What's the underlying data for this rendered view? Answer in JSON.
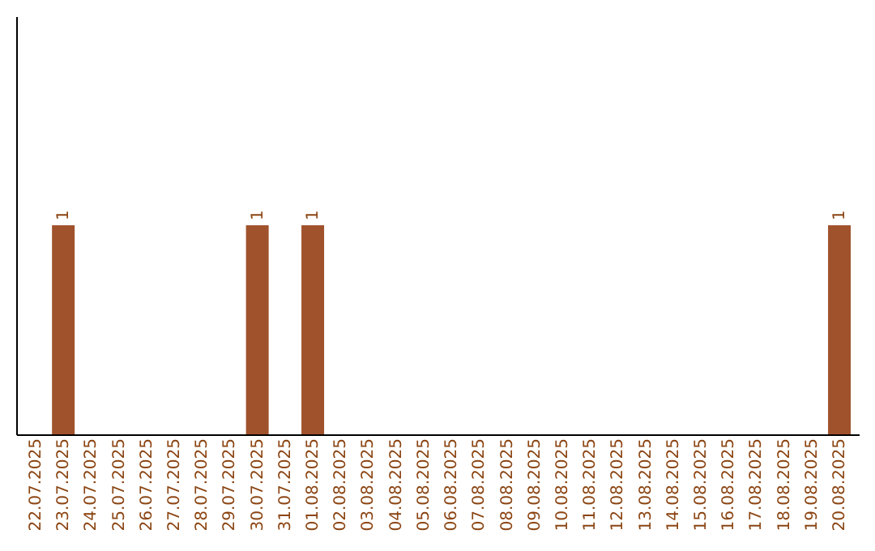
{
  "chart_data": {
    "type": "bar",
    "categories": [
      "22.07.2025",
      "23.07.2025",
      "24.07.2025",
      "25.07.2025",
      "26.07.2025",
      "27.07.2025",
      "28.07.2025",
      "29.07.2025",
      "30.07.2025",
      "31.07.2025",
      "01.08.2025",
      "02.08.2025",
      "03.08.2025",
      "04.08.2025",
      "05.08.2025",
      "06.08.2025",
      "07.08.2025",
      "08.08.2025",
      "09.08.2025",
      "10.08.2025",
      "11.08.2025",
      "12.08.2025",
      "13.08.2025",
      "14.08.2025",
      "15.08.2025",
      "16.08.2025",
      "17.08.2025",
      "18.08.2025",
      "19.08.2025",
      "20.08.2025"
    ],
    "values": [
      0,
      1,
      0,
      0,
      0,
      0,
      0,
      0,
      1,
      0,
      1,
      0,
      0,
      0,
      0,
      0,
      0,
      0,
      0,
      0,
      0,
      0,
      0,
      0,
      0,
      0,
      0,
      0,
      0,
      1
    ],
    "value_labels": [
      null,
      "1",
      null,
      null,
      null,
      null,
      null,
      null,
      "1",
      null,
      "1",
      null,
      null,
      null,
      null,
      null,
      null,
      null,
      null,
      null,
      null,
      null,
      null,
      null,
      null,
      null,
      null,
      null,
      null,
      "1"
    ],
    "color": "#a0522d",
    "ylim": [
      0,
      2
    ],
    "tick_labels": "x",
    "grid": false
  }
}
